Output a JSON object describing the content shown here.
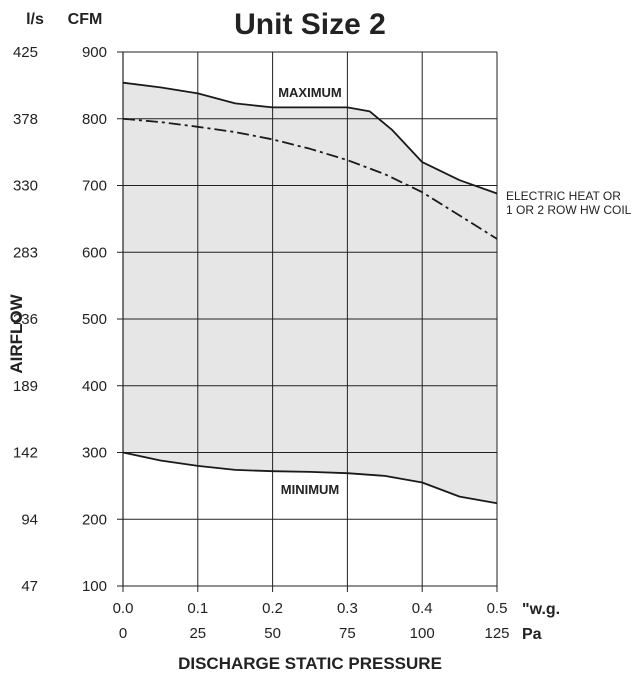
{
  "chart_data": {
    "type": "area",
    "title": "Unit Size 2",
    "ylabel": "AIRFLOW",
    "xlabel": "DISCHARGE STATIC PRESSURE",
    "y_unit_left": "l/s",
    "y_unit_right": "CFM",
    "x_unit_top": "\"w.g.",
    "x_unit_bottom": "Pa",
    "xlim": [
      0,
      0.5
    ],
    "ylim": [
      100,
      900
    ],
    "x_ticks_wg": [
      "0.0",
      "0.1",
      "0.2",
      "0.3",
      "0.4",
      "0.5"
    ],
    "x_ticks_pa": [
      "0",
      "25",
      "50",
      "75",
      "100",
      "125"
    ],
    "x_tick_values": [
      0,
      0.1,
      0.2,
      0.3,
      0.4,
      0.5
    ],
    "y_ticks_cfm": [
      "900",
      "800",
      "700",
      "600",
      "500",
      "400",
      "300",
      "200",
      "100"
    ],
    "y_ticks_ls": [
      "425",
      "378",
      "330",
      "283",
      "236",
      "189",
      "142",
      "94",
      "47"
    ],
    "y_tick_values": [
      900,
      800,
      700,
      600,
      500,
      400,
      300,
      200,
      100
    ],
    "grid": true,
    "fill_color": "#e6e6e6",
    "series": [
      {
        "name": "MAXIMUM",
        "style": "solid",
        "x": [
          0,
          0.05,
          0.1,
          0.15,
          0.2,
          0.25,
          0.3,
          0.33,
          0.36,
          0.4,
          0.45,
          0.5
        ],
        "y": [
          854,
          847,
          838,
          823,
          817,
          817,
          817,
          811,
          783,
          735,
          708,
          688
        ]
      },
      {
        "name": "ELECTRIC HEAT OR 1 OR 2 ROW HW COIL",
        "style": "dash-dot",
        "x": [
          0,
          0.05,
          0.1,
          0.15,
          0.2,
          0.25,
          0.3,
          0.35,
          0.4,
          0.45,
          0.5
        ],
        "y": [
          800,
          795,
          788,
          780,
          769,
          755,
          738,
          717,
          690,
          655,
          620
        ]
      },
      {
        "name": "MINIMUM",
        "style": "solid",
        "x": [
          0,
          0.05,
          0.1,
          0.15,
          0.2,
          0.25,
          0.3,
          0.35,
          0.4,
          0.45,
          0.5
        ],
        "y": [
          300,
          288,
          280,
          274,
          272,
          271,
          269,
          265,
          255,
          234,
          224
        ]
      }
    ],
    "annotation_note_lines": [
      "ELECTRIC HEAT OR",
      "1 OR 2 ROW HW COIL"
    ]
  }
}
